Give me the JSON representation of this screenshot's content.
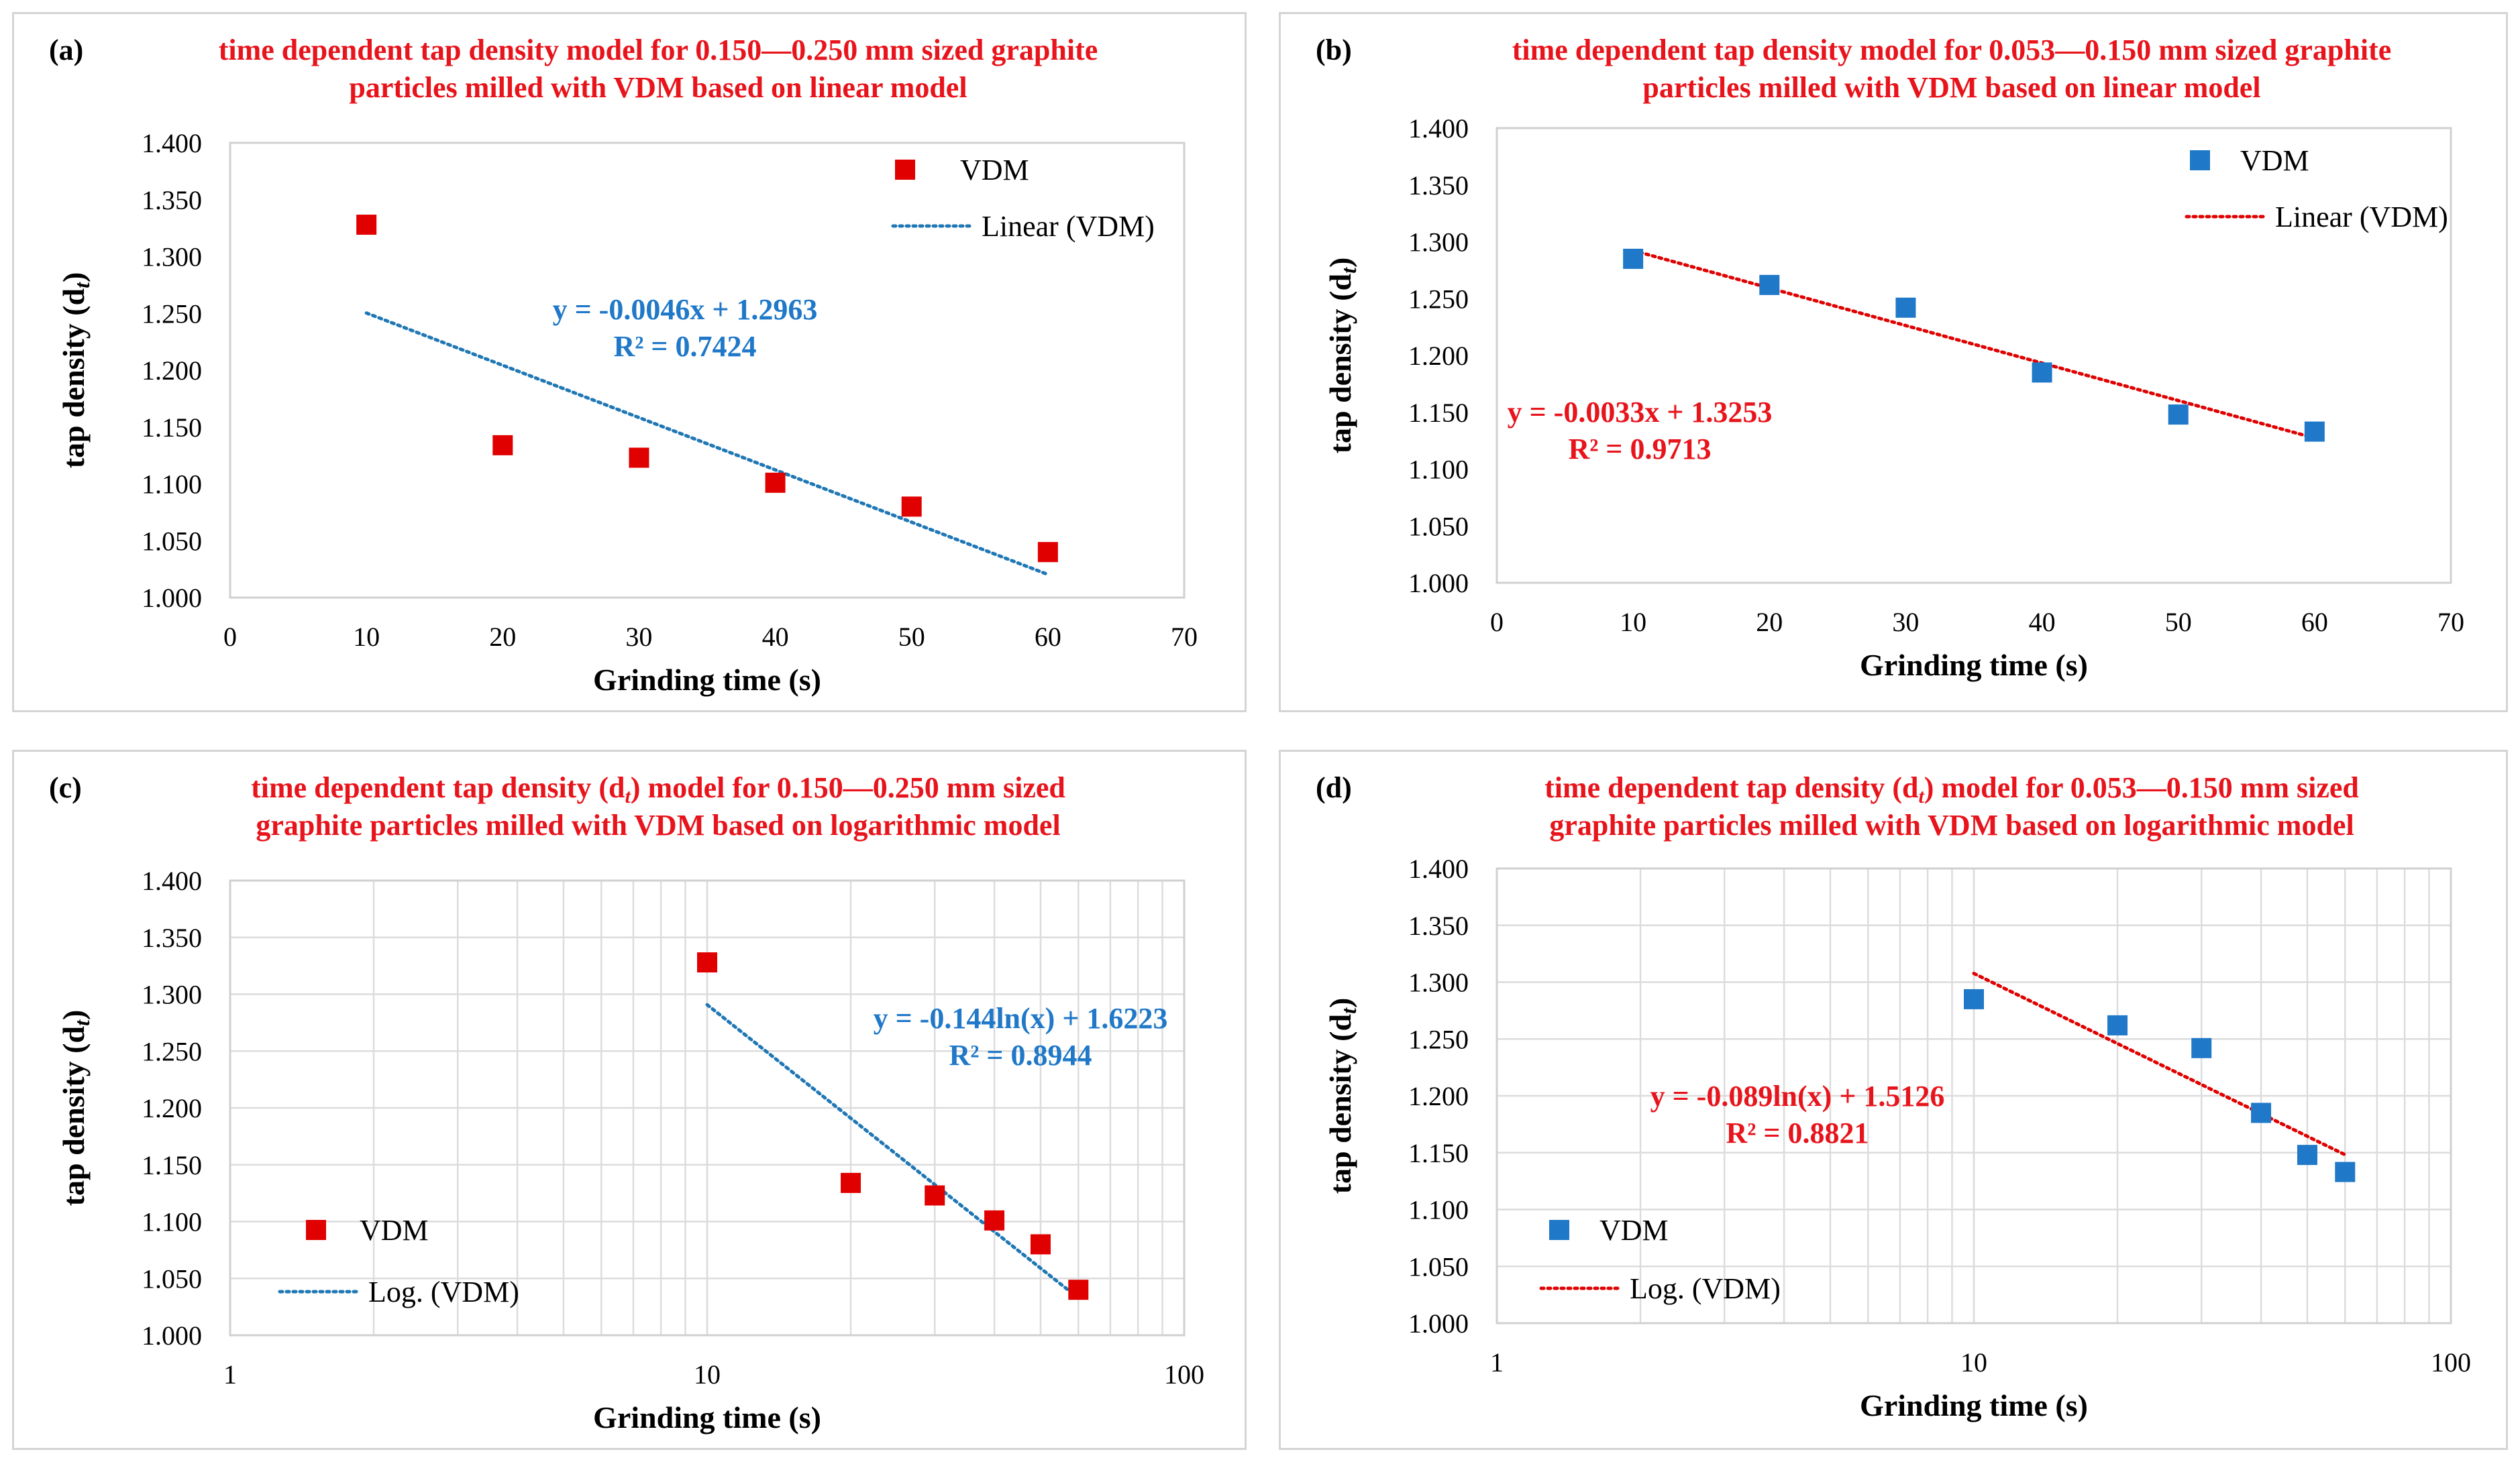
{
  "chart_data": [
    {
      "id": "a",
      "label": "(a)",
      "type": "scatter",
      "title_lines": [
        "time dependent tap density model for 0.150—0.250 mm sized graphite",
        "particles milled with VDM based on linear model"
      ],
      "xscale": "linear",
      "xlim": [
        0,
        70
      ],
      "xticks": [
        0,
        10,
        20,
        30,
        40,
        50,
        60,
        70
      ],
      "xtick_labels": [
        "0",
        "10",
        "20",
        "30",
        "40",
        "50",
        "60",
        "70"
      ],
      "ylim": [
        1.0,
        1.4
      ],
      "yticks": [
        "1.000",
        "1.050",
        "1.100",
        "1.150",
        "1.200",
        "1.250",
        "1.300",
        "1.350",
        "1.400"
      ],
      "xlabel": "Grinding time (s)",
      "ylabel": "tap density (d",
      "ylabel_sub": "t",
      "ylabel_close": ")",
      "grid": "none",
      "series": [
        {
          "name": "VDM",
          "color": "#e00000",
          "x": [
            10,
            20,
            30,
            40,
            50,
            60
          ],
          "y": [
            1.328,
            1.134,
            1.123,
            1.101,
            1.08,
            1.04
          ]
        }
      ],
      "trendline": {
        "name": "Linear (VDM)",
        "kind": "linear",
        "slope": -0.0046,
        "intercept": 1.2963,
        "x_range": [
          10,
          60
        ],
        "color": "#1f77b4"
      },
      "equation": "y = -0.0046x + 1.2963",
      "r2": "R² = 0.7424",
      "equation_color": "#1f78c8",
      "legend_position": "top-right"
    },
    {
      "id": "b",
      "label": "(b)",
      "type": "scatter",
      "title_lines": [
        "time dependent tap density model for 0.053—0.150 mm sized graphite",
        "particles milled with VDM based on linear model"
      ],
      "xscale": "linear",
      "xlim": [
        0,
        70
      ],
      "xticks": [
        0,
        10,
        20,
        30,
        40,
        50,
        60,
        70
      ],
      "xtick_labels": [
        "0",
        "10",
        "20",
        "30",
        "40",
        "50",
        "60",
        "70"
      ],
      "ylim": [
        1.0,
        1.4
      ],
      "yticks": [
        "1.000",
        "1.050",
        "1.100",
        "1.150",
        "1.200",
        "1.250",
        "1.300",
        "1.350",
        "1.400"
      ],
      "xlabel": "Grinding time (s)",
      "ylabel": "tap density (d",
      "ylabel_sub": "t",
      "ylabel_close": ")",
      "grid": "none",
      "series": [
        {
          "name": "VDM",
          "color": "#1f78c8",
          "x": [
            10,
            20,
            30,
            40,
            50,
            60
          ],
          "y": [
            1.285,
            1.262,
            1.242,
            1.185,
            1.148,
            1.133
          ]
        }
      ],
      "trendline": {
        "name": "Linear (VDM)",
        "kind": "linear",
        "slope": -0.0033,
        "intercept": 1.3253,
        "x_range": [
          10,
          60
        ],
        "color": "#e00000"
      },
      "equation": "y = -0.0033x + 1.3253",
      "r2": "R² = 0.9713",
      "equation_color": "#e8141c",
      "legend_position": "top-right"
    },
    {
      "id": "c",
      "label": "(c)",
      "type": "scatter",
      "title_lines": [
        "time dependent tap density (d",
        "t",
        ") model for 0.150—0.250 mm sized",
        "graphite particles milled with VDM based on logarithmic model"
      ],
      "xscale": "log",
      "xlim": [
        1,
        100
      ],
      "xticks": [
        1,
        10,
        100
      ],
      "xtick_labels": [
        "1",
        "10",
        "100"
      ],
      "ylim": [
        1.0,
        1.4
      ],
      "yticks": [
        "1.000",
        "1.050",
        "1.100",
        "1.150",
        "1.200",
        "1.250",
        "1.300",
        "1.350",
        "1.400"
      ],
      "xlabel": "Grinding time (s)",
      "ylabel": "tap density (d",
      "ylabel_sub": "t",
      "ylabel_close": ")",
      "grid": "log",
      "series": [
        {
          "name": "VDM",
          "color": "#e00000",
          "x": [
            10,
            20,
            30,
            40,
            50,
            60
          ],
          "y": [
            1.328,
            1.134,
            1.123,
            1.101,
            1.08,
            1.04
          ]
        }
      ],
      "trendline": {
        "name": "Log. (VDM)",
        "kind": "log",
        "a": -0.144,
        "b": 1.6223,
        "x_range": [
          10,
          60
        ],
        "color": "#1f77b4"
      },
      "equation": "y = -0.144ln(x) + 1.6223",
      "r2": "R² = 0.8944",
      "equation_color": "#1f78c8",
      "legend_position": "bottom-left"
    },
    {
      "id": "d",
      "label": "(d)",
      "type": "scatter",
      "title_lines": [
        "time dependent tap density (d",
        "t",
        ") model for 0.053—0.150 mm sized",
        "graphite particles milled with VDM based on logarithmic model"
      ],
      "xscale": "log",
      "xlim": [
        1,
        100
      ],
      "xticks": [
        1,
        10,
        100
      ],
      "xtick_labels": [
        "1",
        "10",
        "100"
      ],
      "ylim": [
        1.0,
        1.4
      ],
      "yticks": [
        "1.000",
        "1.050",
        "1.100",
        "1.150",
        "1.200",
        "1.250",
        "1.300",
        "1.350",
        "1.400"
      ],
      "xlabel": "Grinding time (s)",
      "ylabel": "tap density (d",
      "ylabel_sub": "t",
      "ylabel_close": ")",
      "grid": "log",
      "series": [
        {
          "name": "VDM",
          "color": "#1f78c8",
          "x": [
            10,
            20,
            30,
            40,
            50,
            60
          ],
          "y": [
            1.285,
            1.262,
            1.242,
            1.185,
            1.148,
            1.133
          ]
        }
      ],
      "trendline": {
        "name": "Log. (VDM)",
        "kind": "log",
        "a": -0.089,
        "b": 1.5126,
        "x_range": [
          10,
          60
        ],
        "color": "#e00000"
      },
      "equation": "y = -0.089ln(x) + 1.5126",
      "r2": "R² = 0.8821",
      "equation_color": "#e8141c",
      "legend_position": "bottom-left"
    }
  ]
}
